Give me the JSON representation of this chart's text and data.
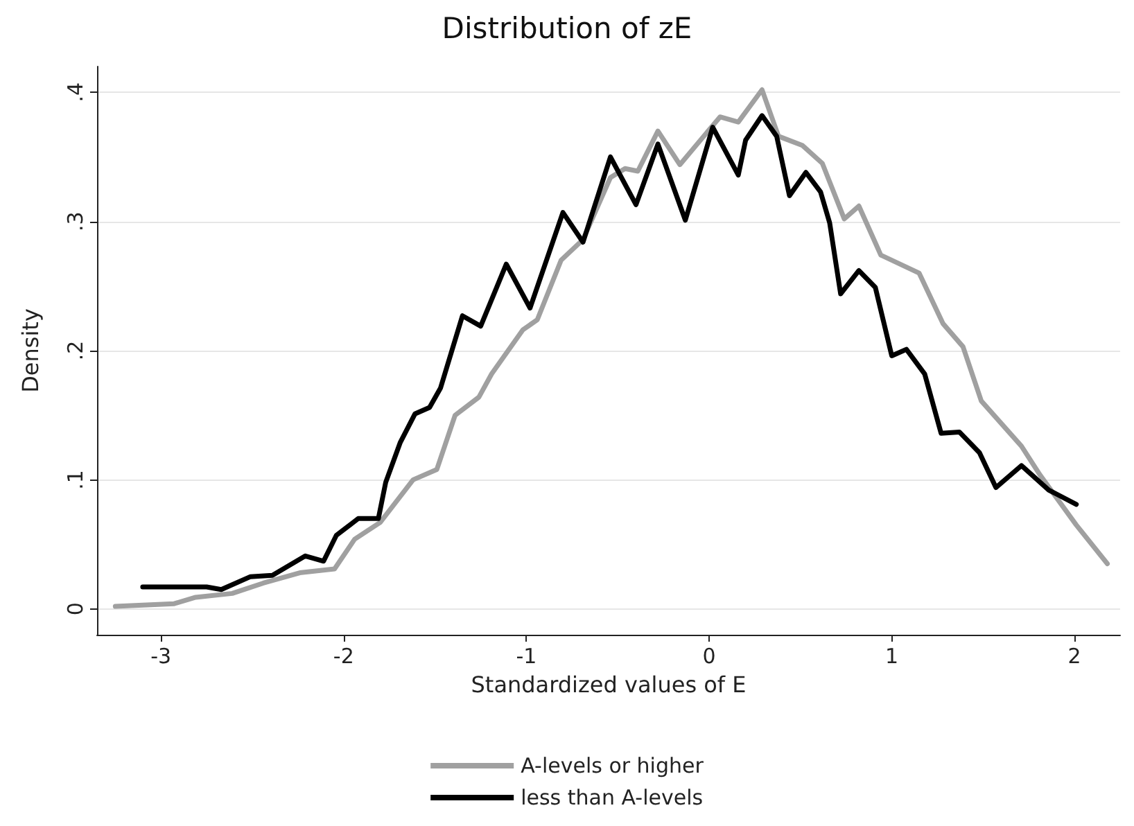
{
  "chart_data": {
    "type": "line",
    "title": "Distribution of zE",
    "xlabel": "Standardized values of E",
    "ylabel": "Density",
    "xlim": [
      -3.35,
      2.25
    ],
    "xticks": [
      -3,
      -2,
      -1,
      0,
      1,
      2
    ],
    "ylim": [
      -0.02,
      0.42
    ],
    "yticks": [
      {
        "value": 0,
        "label": "0"
      },
      {
        "value": 0.1,
        "label": ".1"
      },
      {
        "value": 0.2,
        "label": ".2"
      },
      {
        "value": 0.3,
        "label": ".3"
      },
      {
        "value": 0.4,
        "label": ".4"
      }
    ],
    "grid": "y",
    "legend": "bottom",
    "marker": "none",
    "line_style": "solid",
    "series": [
      {
        "name": "A-levels or higher",
        "color": "#a0a0a0",
        "x": [
          -3.25,
          -3.1,
          -2.93,
          -2.81,
          -2.61,
          -2.44,
          -2.24,
          -2.05,
          -1.94,
          -1.8,
          -1.62,
          -1.49,
          -1.39,
          -1.26,
          -1.19,
          -1.02,
          -0.94,
          -0.81,
          -0.69,
          -0.54,
          -0.46,
          -0.39,
          -0.28,
          -0.16,
          0.06,
          0.16,
          0.29,
          0.38,
          0.51,
          0.62,
          0.74,
          0.82,
          0.94,
          1.15,
          1.28,
          1.39,
          1.49,
          1.71,
          1.81,
          2.01,
          2.18
        ],
        "values": [
          0.002,
          0.003,
          0.004,
          0.009,
          0.012,
          0.02,
          0.028,
          0.031,
          0.054,
          0.067,
          0.1,
          0.108,
          0.15,
          0.164,
          0.182,
          0.216,
          0.224,
          0.27,
          0.286,
          0.334,
          0.341,
          0.339,
          0.37,
          0.344,
          0.381,
          0.377,
          0.402,
          0.366,
          0.359,
          0.345,
          0.302,
          0.312,
          0.274,
          0.26,
          0.221,
          0.203,
          0.161,
          0.126,
          0.104,
          0.065,
          0.035
        ]
      },
      {
        "name": "less than A-levels",
        "color": "#000000",
        "x": [
          -3.1,
          -2.75,
          -2.67,
          -2.51,
          -2.39,
          -2.21,
          -2.11,
          -2.04,
          -1.92,
          -1.81,
          -1.77,
          -1.69,
          -1.61,
          -1.53,
          -1.47,
          -1.35,
          -1.25,
          -1.11,
          -0.98,
          -0.8,
          -0.69,
          -0.54,
          -0.4,
          -0.28,
          -0.13,
          0.02,
          0.16,
          0.2,
          0.29,
          0.37,
          0.44,
          0.53,
          0.61,
          0.66,
          0.72,
          0.82,
          0.91,
          1.0,
          1.08,
          1.18,
          1.27,
          1.37,
          1.48,
          1.57,
          1.71,
          1.86,
          2.01
        ],
        "values": [
          0.017,
          0.017,
          0.015,
          0.025,
          0.026,
          0.041,
          0.037,
          0.057,
          0.07,
          0.07,
          0.098,
          0.129,
          0.151,
          0.156,
          0.171,
          0.227,
          0.219,
          0.267,
          0.233,
          0.307,
          0.284,
          0.35,
          0.313,
          0.36,
          0.301,
          0.373,
          0.336,
          0.363,
          0.382,
          0.366,
          0.32,
          0.338,
          0.323,
          0.299,
          0.244,
          0.262,
          0.249,
          0.196,
          0.201,
          0.182,
          0.136,
          0.137,
          0.121,
          0.094,
          0.111,
          0.092,
          0.081
        ]
      }
    ]
  }
}
